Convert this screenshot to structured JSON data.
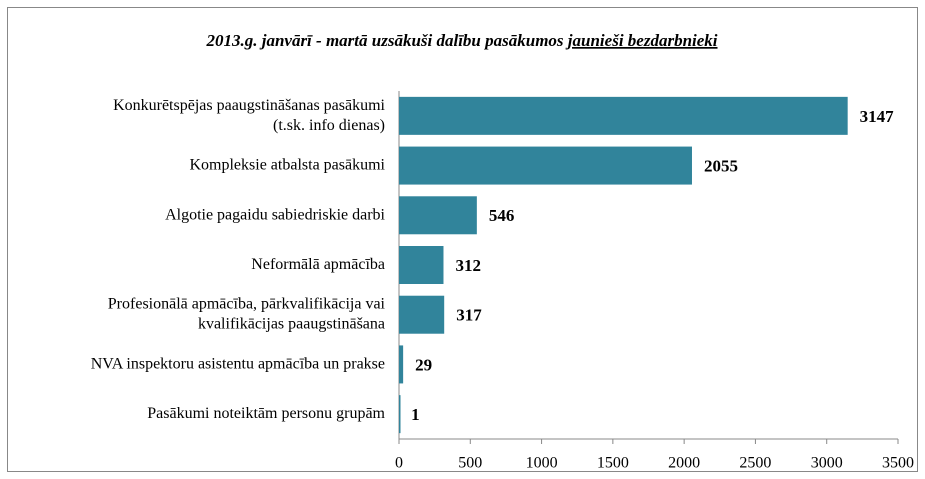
{
  "chart_data": {
    "type": "bar",
    "orientation": "horizontal",
    "title": "2013.g. janvārī - martā uzsākuši dalību pasākumos",
    "title_underlined": "jaunieši bezdarbnieki",
    "categories": [
      "Konkurētspējas paaugstināšanas pasākumi\n(t.sk. info dienas)",
      "Kompleksie atbalsta pasākumi",
      "Algotie pagaidu sabiedriskie darbi",
      "Neformālā apmācība",
      "Profesionālā apmācība, pārkvalifikācija vai\nkvalifikācijas paaugstināšana",
      "NVA inspektoru asistentu apmācība un prakse",
      "Pasākumi noteiktām personu grupām"
    ],
    "values": [
      3147,
      2055,
      546,
      312,
      317,
      29,
      1
    ],
    "color": "#31849b",
    "xlim": [
      0,
      3500
    ],
    "xticks": [
      0,
      500,
      1000,
      1500,
      2000,
      2500,
      3000,
      3500
    ],
    "grid": false
  }
}
